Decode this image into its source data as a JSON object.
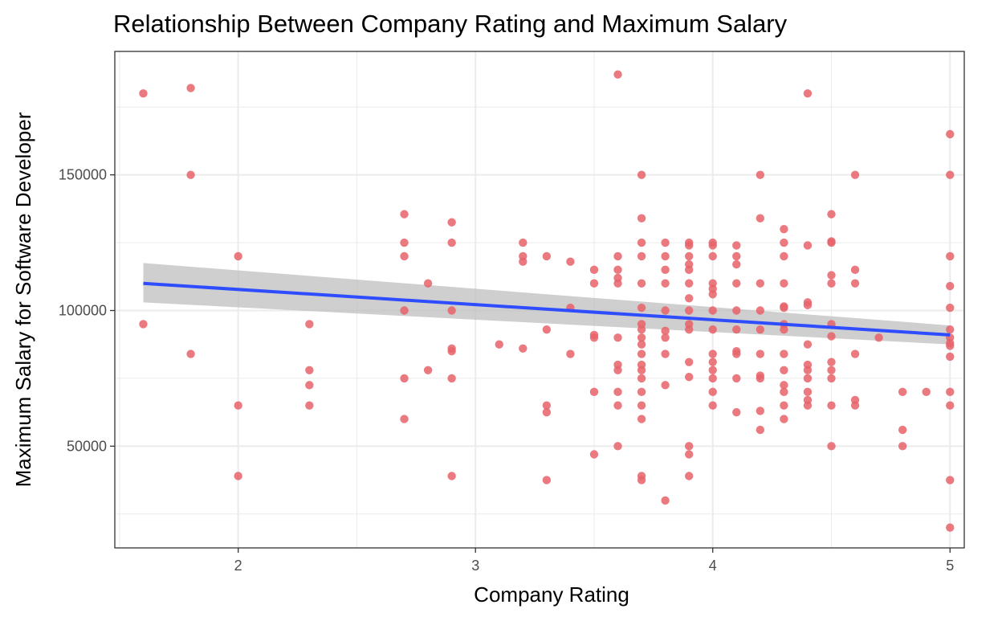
{
  "chart_data": {
    "type": "scatter",
    "title": "Relationship Between Company Rating and Maximum Salary",
    "xlabel": "Company Rating",
    "ylabel": "Maximum Salary for Software Developer",
    "xlim": [
      1.48,
      5.06
    ],
    "ylim": [
      12500,
      195500
    ],
    "x_ticks": [
      2,
      3,
      4,
      5
    ],
    "x_tick_labels": [
      "2",
      "3",
      "4",
      "5"
    ],
    "x_minor_ticks": [
      1.5,
      2.5,
      3.5,
      4.5
    ],
    "y_ticks": [
      50000,
      100000,
      150000
    ],
    "y_tick_labels": [
      "50000",
      "100000",
      "150000"
    ],
    "y_minor_ticks": [
      25000,
      75000,
      125000,
      175000
    ],
    "grid": true,
    "legend": "none",
    "colors": {
      "points": "#e8636a",
      "trend_line": "#2e4dff",
      "confidence_band": "#bfbfbf",
      "grid": "#ebebeb",
      "panel_border": "#333333"
    },
    "trend": {
      "method": "linear",
      "x": [
        1.6,
        5.0
      ],
      "y": [
        110000,
        91000
      ],
      "ci_lower": [
        103000,
        87500
      ],
      "ci_upper": [
        117500,
        94500
      ]
    },
    "points": [
      [
        1.6,
        180000
      ],
      [
        1.6,
        95000
      ],
      [
        1.8,
        182000
      ],
      [
        1.8,
        150000
      ],
      [
        1.8,
        84000
      ],
      [
        2.0,
        120000
      ],
      [
        2.0,
        65000
      ],
      [
        2.0,
        39000
      ],
      [
        2.3,
        95000
      ],
      [
        2.3,
        78000
      ],
      [
        2.3,
        72500
      ],
      [
        2.3,
        65000
      ],
      [
        2.7,
        135500
      ],
      [
        2.7,
        125000
      ],
      [
        2.7,
        120000
      ],
      [
        2.7,
        100000
      ],
      [
        2.7,
        75000
      ],
      [
        2.7,
        60000
      ],
      [
        2.8,
        110000
      ],
      [
        2.8,
        78000
      ],
      [
        2.9,
        132500
      ],
      [
        2.9,
        125000
      ],
      [
        2.9,
        100000
      ],
      [
        2.9,
        86000
      ],
      [
        2.9,
        85000
      ],
      [
        2.9,
        75000
      ],
      [
        2.9,
        39000
      ],
      [
        3.1,
        87500
      ],
      [
        3.2,
        125000
      ],
      [
        3.2,
        120000
      ],
      [
        3.2,
        118000
      ],
      [
        3.2,
        86000
      ],
      [
        3.3,
        120000
      ],
      [
        3.3,
        93000
      ],
      [
        3.3,
        65000
      ],
      [
        3.3,
        62500
      ],
      [
        3.3,
        37500
      ],
      [
        3.4,
        118000
      ],
      [
        3.4,
        101000
      ],
      [
        3.4,
        84000
      ],
      [
        3.5,
        115000
      ],
      [
        3.5,
        110000
      ],
      [
        3.5,
        91000
      ],
      [
        3.5,
        90000
      ],
      [
        3.5,
        70000
      ],
      [
        3.5,
        47000
      ],
      [
        3.6,
        187000
      ],
      [
        3.6,
        120000
      ],
      [
        3.6,
        115000
      ],
      [
        3.6,
        112000
      ],
      [
        3.6,
        110000
      ],
      [
        3.6,
        90000
      ],
      [
        3.6,
        80000
      ],
      [
        3.6,
        78000
      ],
      [
        3.6,
        70000
      ],
      [
        3.6,
        65000
      ],
      [
        3.6,
        50000
      ],
      [
        3.7,
        150000
      ],
      [
        3.7,
        134000
      ],
      [
        3.7,
        125000
      ],
      [
        3.7,
        120000
      ],
      [
        3.7,
        110000
      ],
      [
        3.7,
        101000
      ],
      [
        3.7,
        95000
      ],
      [
        3.7,
        93000
      ],
      [
        3.7,
        90000
      ],
      [
        3.7,
        87500
      ],
      [
        3.7,
        84000
      ],
      [
        3.7,
        80000
      ],
      [
        3.7,
        78000
      ],
      [
        3.7,
        75000
      ],
      [
        3.7,
        70000
      ],
      [
        3.7,
        65000
      ],
      [
        3.7,
        60000
      ],
      [
        3.7,
        39000
      ],
      [
        3.7,
        37500
      ],
      [
        3.8,
        125000
      ],
      [
        3.8,
        120000
      ],
      [
        3.8,
        115000
      ],
      [
        3.8,
        110000
      ],
      [
        3.8,
        100000
      ],
      [
        3.8,
        92500
      ],
      [
        3.8,
        90000
      ],
      [
        3.8,
        84000
      ],
      [
        3.8,
        72500
      ],
      [
        3.8,
        30000
      ],
      [
        3.9,
        125000
      ],
      [
        3.9,
        124000
      ],
      [
        3.9,
        120000
      ],
      [
        3.9,
        117000
      ],
      [
        3.9,
        115000
      ],
      [
        3.9,
        110000
      ],
      [
        3.9,
        104500
      ],
      [
        3.9,
        100000
      ],
      [
        3.9,
        95000
      ],
      [
        3.9,
        93000
      ],
      [
        3.9,
        81000
      ],
      [
        3.9,
        75500
      ],
      [
        3.9,
        50000
      ],
      [
        3.9,
        47000
      ],
      [
        3.9,
        39000
      ],
      [
        4.0,
        125000
      ],
      [
        4.0,
        124000
      ],
      [
        4.0,
        120000
      ],
      [
        4.0,
        110000
      ],
      [
        4.0,
        108000
      ],
      [
        4.0,
        106000
      ],
      [
        4.0,
        100000
      ],
      [
        4.0,
        93000
      ],
      [
        4.0,
        84000
      ],
      [
        4.0,
        81000
      ],
      [
        4.0,
        78000
      ],
      [
        4.0,
        75000
      ],
      [
        4.0,
        70000
      ],
      [
        4.0,
        65000
      ],
      [
        4.1,
        124000
      ],
      [
        4.1,
        120000
      ],
      [
        4.1,
        117000
      ],
      [
        4.1,
        110000
      ],
      [
        4.1,
        100000
      ],
      [
        4.1,
        93000
      ],
      [
        4.1,
        85000
      ],
      [
        4.1,
        84000
      ],
      [
        4.1,
        75000
      ],
      [
        4.1,
        62500
      ],
      [
        4.2,
        150000
      ],
      [
        4.2,
        134000
      ],
      [
        4.2,
        110000
      ],
      [
        4.2,
        100000
      ],
      [
        4.2,
        93000
      ],
      [
        4.2,
        84000
      ],
      [
        4.2,
        76000
      ],
      [
        4.2,
        75000
      ],
      [
        4.2,
        63000
      ],
      [
        4.2,
        56000
      ],
      [
        4.3,
        130000
      ],
      [
        4.3,
        125000
      ],
      [
        4.3,
        120000
      ],
      [
        4.3,
        110000
      ],
      [
        4.3,
        101500
      ],
      [
        4.3,
        101000
      ],
      [
        4.3,
        95000
      ],
      [
        4.3,
        93000
      ],
      [
        4.3,
        84000
      ],
      [
        4.3,
        78000
      ],
      [
        4.3,
        72500
      ],
      [
        4.3,
        70000
      ],
      [
        4.3,
        65000
      ],
      [
        4.3,
        60000
      ],
      [
        4.4,
        180000
      ],
      [
        4.4,
        124000
      ],
      [
        4.4,
        103000
      ],
      [
        4.4,
        102000
      ],
      [
        4.4,
        87500
      ],
      [
        4.4,
        80000
      ],
      [
        4.4,
        78000
      ],
      [
        4.4,
        75000
      ],
      [
        4.4,
        70000
      ],
      [
        4.4,
        67000
      ],
      [
        4.4,
        65000
      ],
      [
        4.5,
        135500
      ],
      [
        4.5,
        125500
      ],
      [
        4.5,
        125000
      ],
      [
        4.5,
        113000
      ],
      [
        4.5,
        110000
      ],
      [
        4.5,
        95000
      ],
      [
        4.5,
        90500
      ],
      [
        4.5,
        81000
      ],
      [
        4.5,
        78000
      ],
      [
        4.5,
        75000
      ],
      [
        4.5,
        65000
      ],
      [
        4.5,
        50000
      ],
      [
        4.6,
        150000
      ],
      [
        4.6,
        115000
      ],
      [
        4.6,
        110000
      ],
      [
        4.6,
        84000
      ],
      [
        4.6,
        67000
      ],
      [
        4.6,
        65000
      ],
      [
        4.7,
        90000
      ],
      [
        4.8,
        70000
      ],
      [
        4.8,
        56000
      ],
      [
        4.8,
        50000
      ],
      [
        4.9,
        70000
      ],
      [
        5.0,
        165000
      ],
      [
        5.0,
        150000
      ],
      [
        5.0,
        120000
      ],
      [
        5.0,
        109000
      ],
      [
        5.0,
        101000
      ],
      [
        5.0,
        93000
      ],
      [
        5.0,
        90000
      ],
      [
        5.0,
        88000
      ],
      [
        5.0,
        87000
      ],
      [
        5.0,
        83000
      ],
      [
        5.0,
        70000
      ],
      [
        5.0,
        65000
      ],
      [
        5.0,
        37500
      ],
      [
        5.0,
        20000
      ]
    ]
  }
}
